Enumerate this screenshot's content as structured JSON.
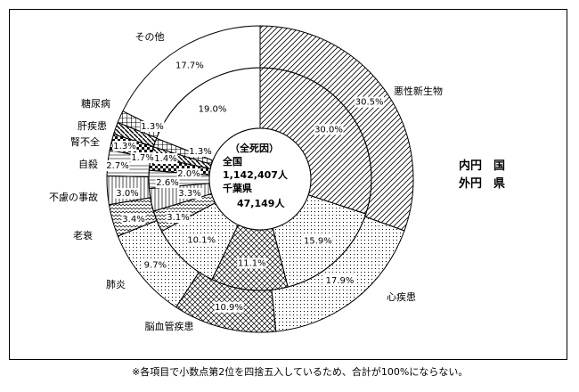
{
  "chart_data": {
    "type": "pie",
    "center_label": {
      "heading": "（全死因）",
      "national_label": "全国",
      "national_value": "1,142,407人",
      "pref_label": "千葉県",
      "pref_value": "47,149人"
    },
    "legend": {
      "inner": "内円　国",
      "outer": "外円　県"
    },
    "categories": [
      "悪性新生物",
      "心疾患",
      "脳血管疾患",
      "肺炎",
      "老衰",
      "不慮の事故",
      "自殺",
      "腎不全",
      "肝疾患",
      "糖尿病",
      "その他"
    ],
    "series": [
      {
        "name": "国",
        "ring": "inner",
        "values": [
          30.0,
          15.9,
          11.1,
          10.1,
          3.1,
          3.3,
          2.6,
          2.0,
          1.4,
          1.3,
          19.0
        ],
        "labels": [
          "30.0%",
          "15.9%",
          "11.1%",
          "10.1%",
          "3.1%",
          "3.3%",
          "2.6%",
          "2.0%",
          "1.4%",
          "1.3%",
          "19.0%"
        ]
      },
      {
        "name": "県",
        "ring": "outer",
        "values": [
          30.5,
          17.9,
          10.9,
          9.7,
          3.4,
          3.0,
          2.7,
          1.7,
          1.3,
          1.3,
          17.7
        ],
        "labels": [
          "30.5%",
          "17.9%",
          "10.9%",
          "9.7%",
          "3.4%",
          "3.0%",
          "2.7%",
          "1.7%",
          "1.3%",
          "1.3%",
          "17.7%"
        ]
      }
    ],
    "footnote": "※各項目で小数点第2位を四捨五入しているため、合計が100%にならない。"
  }
}
